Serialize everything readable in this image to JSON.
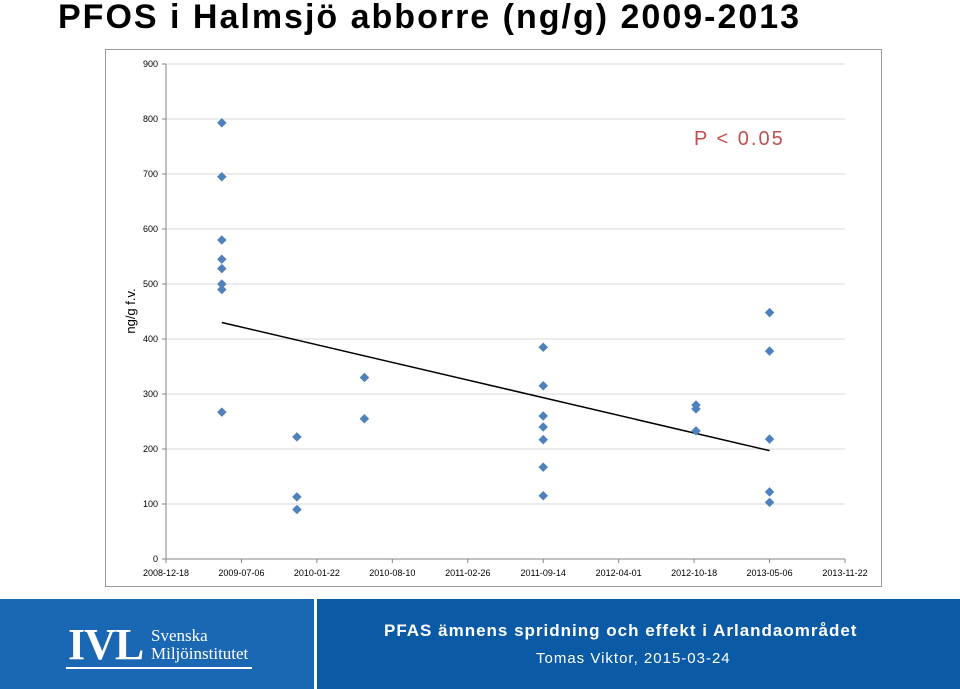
{
  "title": "PFOS i Halmsjö abborre (ng/g) 2009-2013",
  "chart_data": {
    "type": "scatter",
    "ylabel": "ng/g f.v.",
    "xlabel": "",
    "annotation": "P < 0.05",
    "ylim": [
      0,
      900
    ],
    "yticks": [
      0,
      100,
      200,
      300,
      400,
      500,
      600,
      700,
      800,
      900
    ],
    "xlim": [
      "2008-12-18",
      "2013-11-22"
    ],
    "xticks": [
      "2008-12-18",
      "2009-07-06",
      "2010-01-22",
      "2010-08-10",
      "2011-02-26",
      "2011-09-14",
      "2012-04-01",
      "2012-10-18",
      "2013-05-06",
      "2013-11-22"
    ],
    "grid": "horizontal",
    "series": [
      {
        "marker": "diamond",
        "color": "#4f81bd",
        "points": [
          {
            "x": "2009-05-15",
            "y": 793
          },
          {
            "x": "2009-05-15",
            "y": 695
          },
          {
            "x": "2009-05-15",
            "y": 580
          },
          {
            "x": "2009-05-15",
            "y": 545
          },
          {
            "x": "2009-05-15",
            "y": 528
          },
          {
            "x": "2009-05-15",
            "y": 500
          },
          {
            "x": "2009-05-15",
            "y": 490
          },
          {
            "x": "2009-05-15",
            "y": 267
          },
          {
            "x": "2009-11-30",
            "y": 222
          },
          {
            "x": "2009-11-30",
            "y": 113
          },
          {
            "x": "2009-11-30",
            "y": 90
          },
          {
            "x": "2010-05-28",
            "y": 330
          },
          {
            "x": "2010-05-28",
            "y": 255
          },
          {
            "x": "2011-09-14",
            "y": 385
          },
          {
            "x": "2011-09-14",
            "y": 315
          },
          {
            "x": "2011-09-14",
            "y": 260
          },
          {
            "x": "2011-09-14",
            "y": 240
          },
          {
            "x": "2011-09-14",
            "y": 217
          },
          {
            "x": "2011-09-14",
            "y": 167
          },
          {
            "x": "2011-09-14",
            "y": 115
          },
          {
            "x": "2012-10-23",
            "y": 280
          },
          {
            "x": "2012-10-23",
            "y": 273
          },
          {
            "x": "2012-10-23",
            "y": 233
          },
          {
            "x": "2013-05-06",
            "y": 448
          },
          {
            "x": "2013-05-06",
            "y": 378
          },
          {
            "x": "2013-05-06",
            "y": 218
          },
          {
            "x": "2013-05-06",
            "y": 122
          },
          {
            "x": "2013-05-06",
            "y": 103
          }
        ]
      }
    ],
    "trendline": {
      "color": "#000000",
      "points": [
        {
          "x": "2009-05-15",
          "y": 430
        },
        {
          "x": "2013-05-06",
          "y": 197
        }
      ]
    },
    "colors": {
      "annotation": "#c0504d",
      "grid": "#d9d9d9",
      "axis": "#868686"
    }
  },
  "footer": {
    "logo_text": "IVL",
    "org_line1": "Svenska",
    "org_line2": "Miljöinstitutet",
    "title": "PFAS ämnens spridning och effekt i Arlandaområdet",
    "author": "Tomas Viktor, 2015-03-24",
    "colors": {
      "background": "#0b5aa6",
      "logo_panel": "#1a68b3",
      "text": "#ffffff"
    }
  }
}
